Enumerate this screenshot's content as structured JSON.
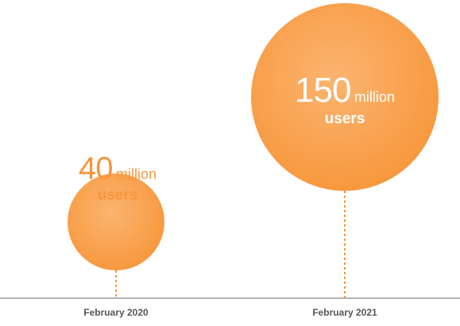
{
  "chart_data": {
    "type": "bubble",
    "categories": [
      "February 2020",
      "February 2021"
    ],
    "values": [
      40,
      150
    ],
    "labels": [
      {
        "number": "40",
        "unit": "million",
        "subunit": "users"
      },
      {
        "number": "150",
        "unit": "million",
        "subunit": "users"
      }
    ],
    "xlabel": "",
    "ylabel": ""
  },
  "colors": {
    "bubble": "#f7963a",
    "bubble_light": "#fbb470",
    "label_small": "#f7963a",
    "label_large_text": "#ffffff",
    "axis": "#b3b3b3",
    "connector": "#f7963a",
    "date_text": "#555555"
  }
}
